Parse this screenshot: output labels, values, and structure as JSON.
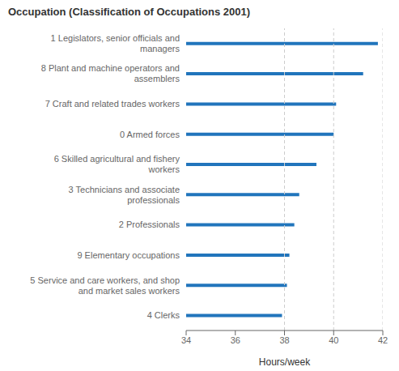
{
  "chart_data": {
    "type": "bar",
    "orientation": "horizontal",
    "title": "Occupation (Classification of Occupations 2001)",
    "xlabel": "Hours/week",
    "categories": [
      "4 Clerks",
      "5 Service and care workers, and shop\nand market sales workers",
      "9 Elementary occupations",
      "2 Professionals",
      "3 Technicians and associate\nprofessionals",
      "6 Skilled agricultural and fishery\nworkers",
      "0 Armed forces",
      "7 Craft and related trades workers",
      "8 Plant and machine operators and\nassemblers",
      "1 Legislators, senior officials and\nmanagers"
    ],
    "values": [
      37.9,
      38.1,
      38.2,
      38.4,
      38.6,
      39.3,
      40.0,
      40.1,
      41.2,
      41.8
    ],
    "color": "#2175bc",
    "xlim": [
      34,
      42
    ],
    "xticks": [
      34,
      36,
      38,
      40,
      42
    ],
    "reference_lines": [
      38,
      40,
      42
    ],
    "grid": false
  }
}
